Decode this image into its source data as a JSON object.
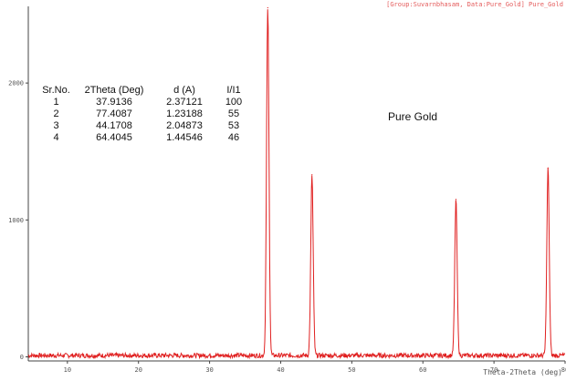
{
  "chart_data": {
    "type": "line",
    "header_tag": "[Group:Suvarnbhasam, Data:Pure_Gold] Pure_Gold",
    "xlabel": "Theta-2Theta (deg)",
    "ylabel": "",
    "xlim": [
      4.5,
      80
    ],
    "ylim": [
      -30,
      2560
    ],
    "x_ticks": [
      "10",
      "20",
      "30",
      "40",
      "50",
      "60",
      "70",
      "80"
    ],
    "y_ticks": [
      "0",
      "1000",
      "2000"
    ],
    "x_tick_values": [
      10,
      20,
      30,
      40,
      50,
      60,
      70,
      80
    ],
    "y_tick_values": [
      0,
      1000,
      2000
    ],
    "line_color": "#e02020",
    "series": [
      {
        "peaks": [
          {
            "x": 38.18,
            "y": 2550
          },
          {
            "x": 44.4,
            "y": 1330
          },
          {
            "x": 64.65,
            "y": 1150
          },
          {
            "x": 77.6,
            "y": 1380
          }
        ],
        "baseline": 10
      }
    ],
    "annotation": "Pure Gold",
    "table": {
      "headers": [
        "Sr.No.",
        "2Theta (Deg)",
        "d (A)",
        "I/I1"
      ],
      "rows": [
        [
          "1",
          "37.9136",
          "2.37121",
          "100"
        ],
        [
          "2",
          "77.4087",
          "1.23188",
          "55"
        ],
        [
          "3",
          "44.1708",
          "2.04873",
          "53"
        ],
        [
          "4",
          "64.4045",
          "1.44546",
          "46"
        ]
      ]
    }
  }
}
